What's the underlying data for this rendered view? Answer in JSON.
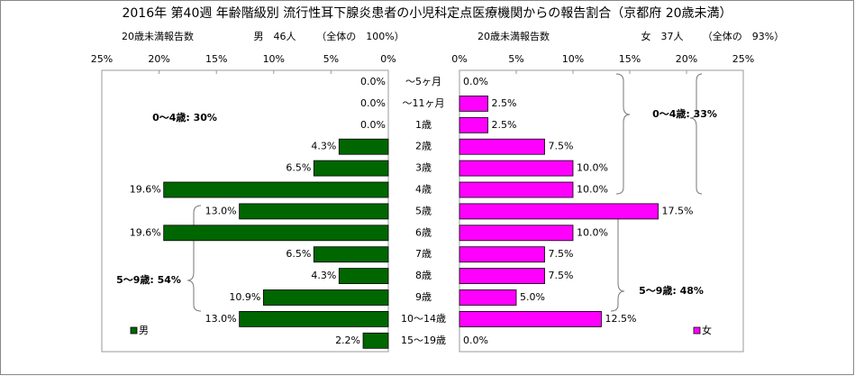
{
  "chart_data": {
    "type": "butterfly-bar",
    "title": "2016年 第40週 年齢階級別 流行性耳下腺炎患者の小児科定点医療機関からの報告割合（京都府 20歳未満）",
    "headers": [
      {
        "label": "20歳未満報告数",
        "count": "男　46人",
        "share": "（全体の　100%）"
      },
      {
        "label": "20歳未満報告数",
        "count": "女　37人",
        "share": "（全体の　93%）"
      }
    ],
    "categories": [
      "～5ヶ月",
      "～11ヶ月",
      "1歳",
      "2歳",
      "3歳",
      "4歳",
      "5歳",
      "6歳",
      "7歳",
      "8歳",
      "9歳",
      "10～14歳",
      "15～19歳"
    ],
    "series": [
      {
        "name": "男",
        "color": "#006600",
        "values": [
          0,
          0,
          0,
          4.3,
          6.5,
          19.6,
          13.0,
          19.6,
          6.5,
          4.3,
          10.9,
          13.0,
          2.2
        ],
        "value_labels": [
          "0.0%",
          "0.0%",
          "0.0%",
          "4.3%",
          "6.5%",
          "19.6%",
          "13.0%",
          "19.6%",
          "6.5%",
          "4.3%",
          "10.9%",
          "13.0%",
          "2.2%"
        ]
      },
      {
        "name": "女",
        "color": "#ff00ff",
        "values": [
          0,
          2.5,
          2.5,
          7.5,
          10.0,
          10.0,
          17.5,
          10.0,
          7.5,
          7.5,
          5.0,
          12.5,
          0.0
        ],
        "value_labels": [
          "0.0%",
          "2.5%",
          "2.5%",
          "7.5%",
          "10.0%",
          "10.0%",
          "17.5%",
          "10.0%",
          "7.5%",
          "7.5%",
          "5.0%",
          "12.5%",
          "0.0%"
        ]
      }
    ],
    "xlim": [
      0,
      25
    ],
    "xticks": [
      {
        "value": 0,
        "label": "0%"
      },
      {
        "value": 5,
        "label": "5%"
      },
      {
        "value": 10,
        "label": "10%"
      },
      {
        "value": 15,
        "label": "15%"
      },
      {
        "value": 20,
        "label": "20%"
      },
      {
        "value": 25,
        "label": "25%"
      }
    ],
    "annotations": [
      "0～4歳: 30%",
      "5～9歳: 54%",
      "0～4歳: 33%",
      "5～9歳: 48%"
    ]
  }
}
